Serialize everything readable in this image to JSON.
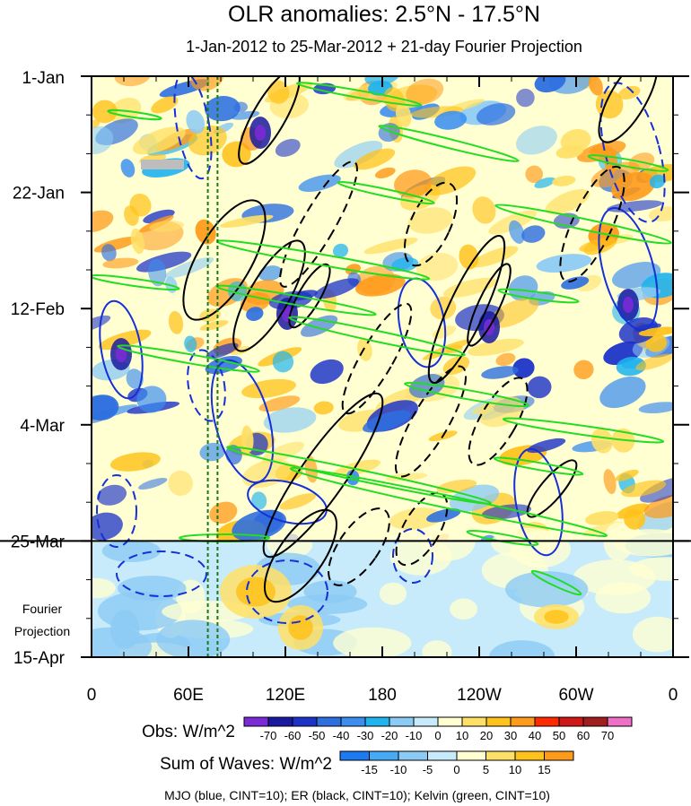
{
  "chart_data": {
    "type": "heatmap",
    "title": "OLR anomalies: 2.5°N - 17.5°N",
    "subtitle": "1-Jan-2012 to 25-Mar-2012 + 21-day Fourier Projection",
    "x_tick_labels": [
      "0",
      "60E",
      "120E",
      "180",
      "120W",
      "60W",
      "0"
    ],
    "x_ticks_lon": [
      0,
      60,
      120,
      180,
      240,
      300,
      360
    ],
    "xlim": [
      0,
      360
    ],
    "y_tick_labels": [
      "1-Jan",
      "22-Jan",
      "12-Feb",
      "4-Mar",
      "25-Mar",
      "15-Apr"
    ],
    "y_ticks_day": [
      0,
      21,
      42,
      63,
      84,
      105
    ],
    "ylim": [
      0,
      105
    ],
    "observation_end_day": 84,
    "projection_label": [
      "Fourier",
      "Projection"
    ],
    "reference_lon": [
      72,
      78
    ],
    "obs_legend": {
      "label": "Obs: W/m^2",
      "levels": [
        "-70",
        "-60",
        "-50",
        "-40",
        "-30",
        "-20",
        "-10",
        "0",
        "10",
        "20",
        "30",
        "40",
        "50",
        "60",
        "70"
      ],
      "colors": [
        "#7a2ad6",
        "#1a1aa0",
        "#1d33c8",
        "#2e6fe0",
        "#3b8ef0",
        "#1fb3f0",
        "#8ccbf5",
        "#c8ebfb",
        "#ffffd2",
        "#ffe066",
        "#ffc21a",
        "#ff9b1a",
        "#ff2a00",
        "#d01818",
        "#a01e1e",
        "#f070c8"
      ]
    },
    "waves_legend": {
      "label": "Sum of Waves: W/m^2",
      "levels": [
        "-15",
        "-10",
        "-5",
        "0",
        "5",
        "10",
        "15"
      ],
      "colors": [
        "#1e7af0",
        "#46aaf5",
        "#8ccbf5",
        "#c8ebfb",
        "#ffffd2",
        "#ffe066",
        "#ffc21a",
        "#ff9b1a"
      ]
    },
    "contour_note": "MJO (blue, CINT=10); ER (black, CINT=10); Kelvin (green, CINT=10)",
    "contours": {
      "mjo_color": "#1630d8",
      "er_color": "#000000",
      "kelvin_color": "#22dd22",
      "reference_line_color": "#1a7a1a"
    }
  }
}
